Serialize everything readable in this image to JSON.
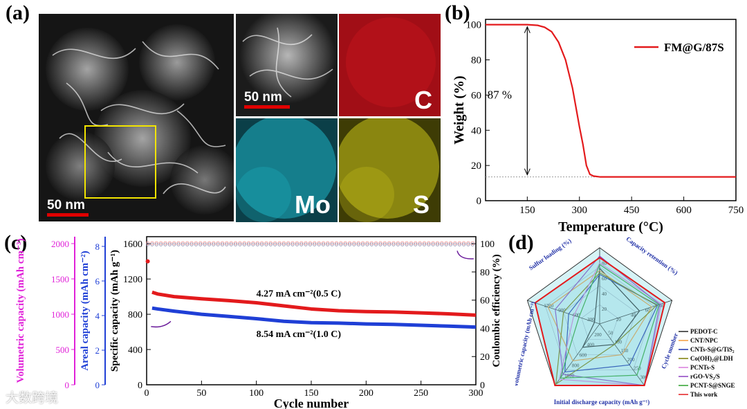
{
  "figure": {
    "panel_labels": {
      "a": "(a)",
      "b": "(b)",
      "c": "(c)",
      "d": "(d)"
    },
    "panel_a": {
      "scale_bar_main": "50 nm",
      "scale_bar_inset": "50 nm",
      "element_maps": [
        {
          "element": "C",
          "color": "#c0101a"
        },
        {
          "element": "Mo",
          "color": "#1fb3c4"
        },
        {
          "element": "S",
          "color": "#c9c21a"
        }
      ],
      "highlight_box_color": "#f2e400"
    },
    "watermark": "大数跨境"
  },
  "chart_data": [
    {
      "id": "b",
      "type": "line",
      "title": "",
      "xlabel": "Temperature (°C)",
      "ylabel": "Weight (%)",
      "xlim": [
        30,
        750
      ],
      "ylim": [
        0,
        103
      ],
      "xticks": [
        150,
        300,
        450,
        600,
        750
      ],
      "yticks": [
        0,
        20,
        40,
        60,
        80,
        100
      ],
      "series": [
        {
          "name": "FM@G/87S",
          "color": "#e31a1c",
          "x": [
            30,
            150,
            180,
            200,
            220,
            240,
            260,
            280,
            300,
            310,
            320,
            330,
            340,
            360,
            400,
            500,
            600,
            750
          ],
          "y": [
            100,
            100,
            99.6,
            98.5,
            96,
            90,
            80,
            64,
            42,
            32,
            20,
            15,
            14,
            13.5,
            13.5,
            13.5,
            13.5,
            13.5
          ]
        }
      ],
      "annotation": {
        "text": "87 %",
        "from": 100,
        "to": 13.5,
        "at_x": 150,
        "guide_y": 13.5
      }
    },
    {
      "id": "c",
      "type": "line",
      "xlabel": "Cycle number",
      "ylabel_left": "Specific capacity (mAh g⁻¹)",
      "ylabel_left2": "Areal capacity (mAh cm⁻²)",
      "ylabel_left3": "Volumetric capacity (mAh cm⁻³)",
      "ylabel_right": "Coulombic efficiency (%)",
      "xlim": [
        0,
        300
      ],
      "ylim": [
        0,
        1680
      ],
      "ylim_right": [
        0,
        105
      ],
      "xticks": [
        0,
        50,
        100,
        150,
        200,
        250,
        300
      ],
      "yticks": [
        0,
        400,
        800,
        1200,
        1600
      ],
      "yticks_right": [
        0,
        20,
        40,
        60,
        80,
        100
      ],
      "areal_ticks": [
        "0",
        "2",
        "4",
        "6",
        "8"
      ],
      "volumetric_ticks": [
        "0",
        "500",
        "1000",
        "1500",
        "2000"
      ],
      "series": [
        {
          "name": "4.27 mA cm⁻²(0.5 C)",
          "color": "#e31a1c",
          "x": [
            5,
            10,
            25,
            50,
            75,
            100,
            125,
            150,
            175,
            200,
            225,
            250,
            275,
            300
          ],
          "y": [
            1050,
            1030,
            1000,
            975,
            955,
            930,
            895,
            860,
            840,
            830,
            825,
            815,
            805,
            790
          ]
        },
        {
          "name": "8.54 mA cm⁻²(1.0 C)",
          "color": "#1f3fd6",
          "x": [
            5,
            10,
            25,
            50,
            75,
            100,
            125,
            150,
            175,
            200,
            225,
            250,
            275,
            300
          ],
          "y": [
            870,
            860,
            835,
            800,
            775,
            750,
            720,
            705,
            700,
            690,
            685,
            675,
            665,
            655
          ]
        },
        {
          "name": "CE 0.5 C",
          "axis": "right",
          "color": "#e88",
          "x": [
            1,
            300
          ],
          "y": [
            100,
            100
          ]
        },
        {
          "name": "CE 1.0 C",
          "axis": "right",
          "color": "#88a",
          "x": [
            1,
            300
          ],
          "y": [
            100,
            100
          ]
        }
      ],
      "annotations": [
        "4.27 mA cm⁻²(0.5 C)",
        "8.54 mA cm⁻²(1.0 C)"
      ]
    },
    {
      "id": "d",
      "type": "radar",
      "axes": [
        {
          "name": "Sulfur loading (%)",
          "ticks": [
            "20",
            "40",
            "60",
            "80"
          ],
          "max": 100
        },
        {
          "name": "Capacity retention (%)",
          "ticks": [
            "20",
            "40",
            "60",
            "80"
          ],
          "max": 100
        },
        {
          "name": "Cycle number",
          "ticks": [
            "50",
            "100",
            "150",
            "200",
            "250",
            "300"
          ],
          "max": 300
        },
        {
          "name": "Initial discharge capacity (mAh g⁻¹)",
          "ticks": [
            "200",
            "400",
            "600",
            "800",
            "1000"
          ],
          "max": 1000
        },
        {
          "name": "Volumetric capacity (mAh cm⁻³)",
          "ticks": [
            "300",
            "600",
            "900",
            "1200"
          ],
          "max": 1400
        }
      ],
      "series": [
        {
          "name": "PEDOT-C",
          "color": "#222222",
          "values": [
            73,
            55,
            100,
            380,
            100
          ]
        },
        {
          "name": "CNT/NPC",
          "color": "#f29a3a",
          "values": [
            70,
            72,
            150,
            600,
            1000
          ]
        },
        {
          "name": "CNTs-S@G/TiS₂",
          "color": "#1a2faa",
          "values": [
            65,
            80,
            200,
            780,
            600
          ]
        },
        {
          "name": "Co(OH)₂@LDH",
          "color": "#7a7a00",
          "values": [
            67,
            79,
            100,
            980,
            700
          ]
        },
        {
          "name": "PCNTs-S",
          "color": "#d87adc",
          "values": [
            80,
            85,
            300,
            900,
            500
          ]
        },
        {
          "name": "rGO-VS₂/S",
          "color": "#8a3fc0",
          "values": [
            89,
            83,
            300,
            820,
            860
          ]
        },
        {
          "name": "PCNT-S@SNGE",
          "color": "#2aa02a",
          "values": [
            78,
            82,
            250,
            880,
            400
          ]
        },
        {
          "name": "This work",
          "color": "#e31a1c",
          "values": [
            87,
            90,
            300,
            1060,
            1250
          ]
        }
      ],
      "legend": [
        "PEDOT-C",
        "CNT/NPC",
        "CNTs-S@G/TiS₂",
        "Co(OH)₂@LDH",
        "PCNTs-S",
        "rGO-VS₂/S",
        "PCNT-S@SNGE",
        "This work"
      ]
    }
  ]
}
